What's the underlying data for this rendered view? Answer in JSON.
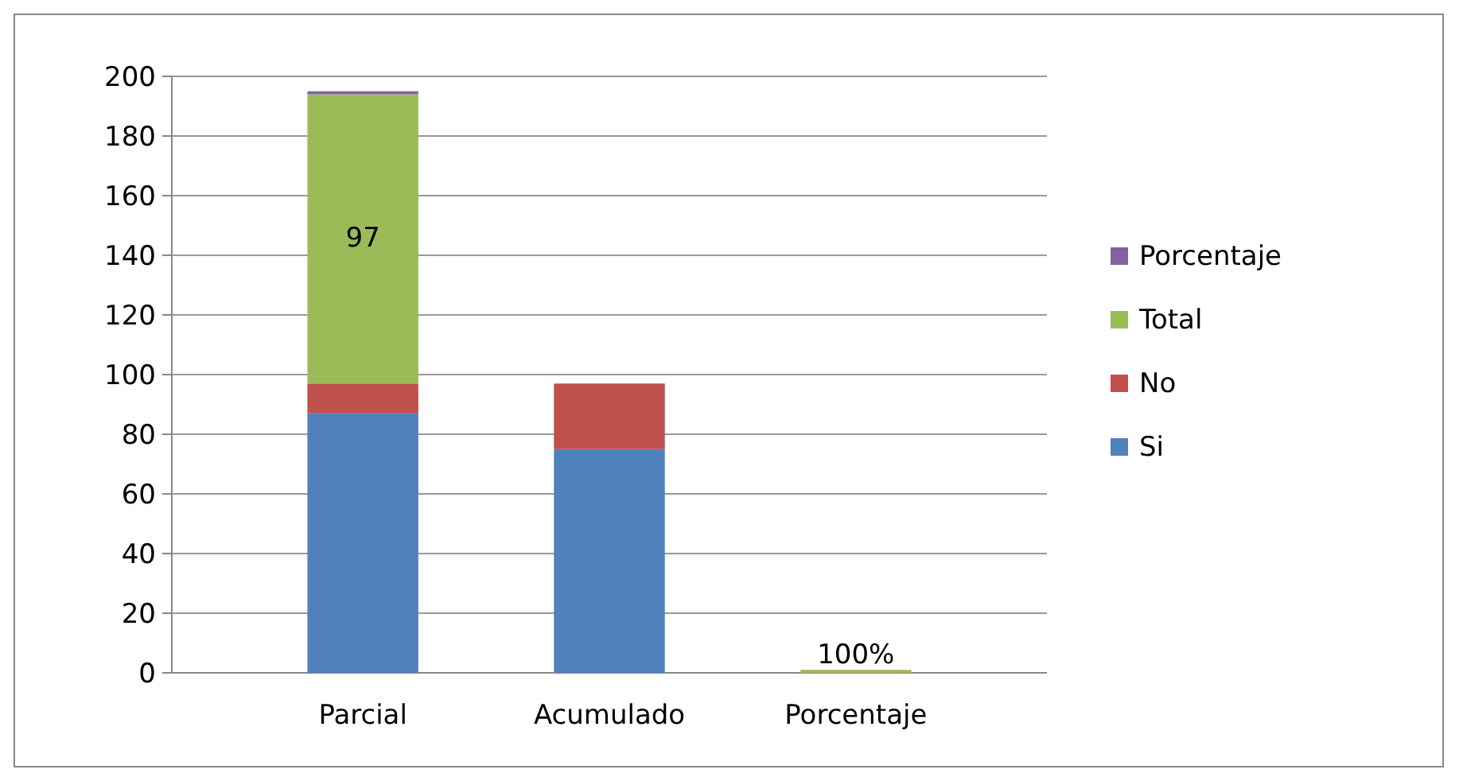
{
  "chart_data": {
    "type": "bar",
    "stacked": true,
    "categories": [
      "Parcial",
      "Acumulado",
      "Porcentaje"
    ],
    "series": [
      {
        "name": "Si",
        "color": "#4f81bd",
        "values": [
          87,
          75,
          0
        ]
      },
      {
        "name": "No",
        "color": "#c0504d",
        "values": [
          10,
          22,
          0
        ]
      },
      {
        "name": "Total",
        "color": "#9bbb59",
        "values": [
          97,
          0,
          1
        ],
        "value_labels": [
          "97",
          null,
          "100%"
        ]
      },
      {
        "name": "Porcentaje",
        "color": "#8064a2",
        "values": [
          1,
          0,
          0
        ]
      }
    ],
    "ylim": [
      0,
      200
    ],
    "yticks": [
      0,
      20,
      40,
      60,
      80,
      100,
      120,
      140,
      160,
      180,
      200
    ],
    "grid": "y",
    "legend": "right"
  }
}
